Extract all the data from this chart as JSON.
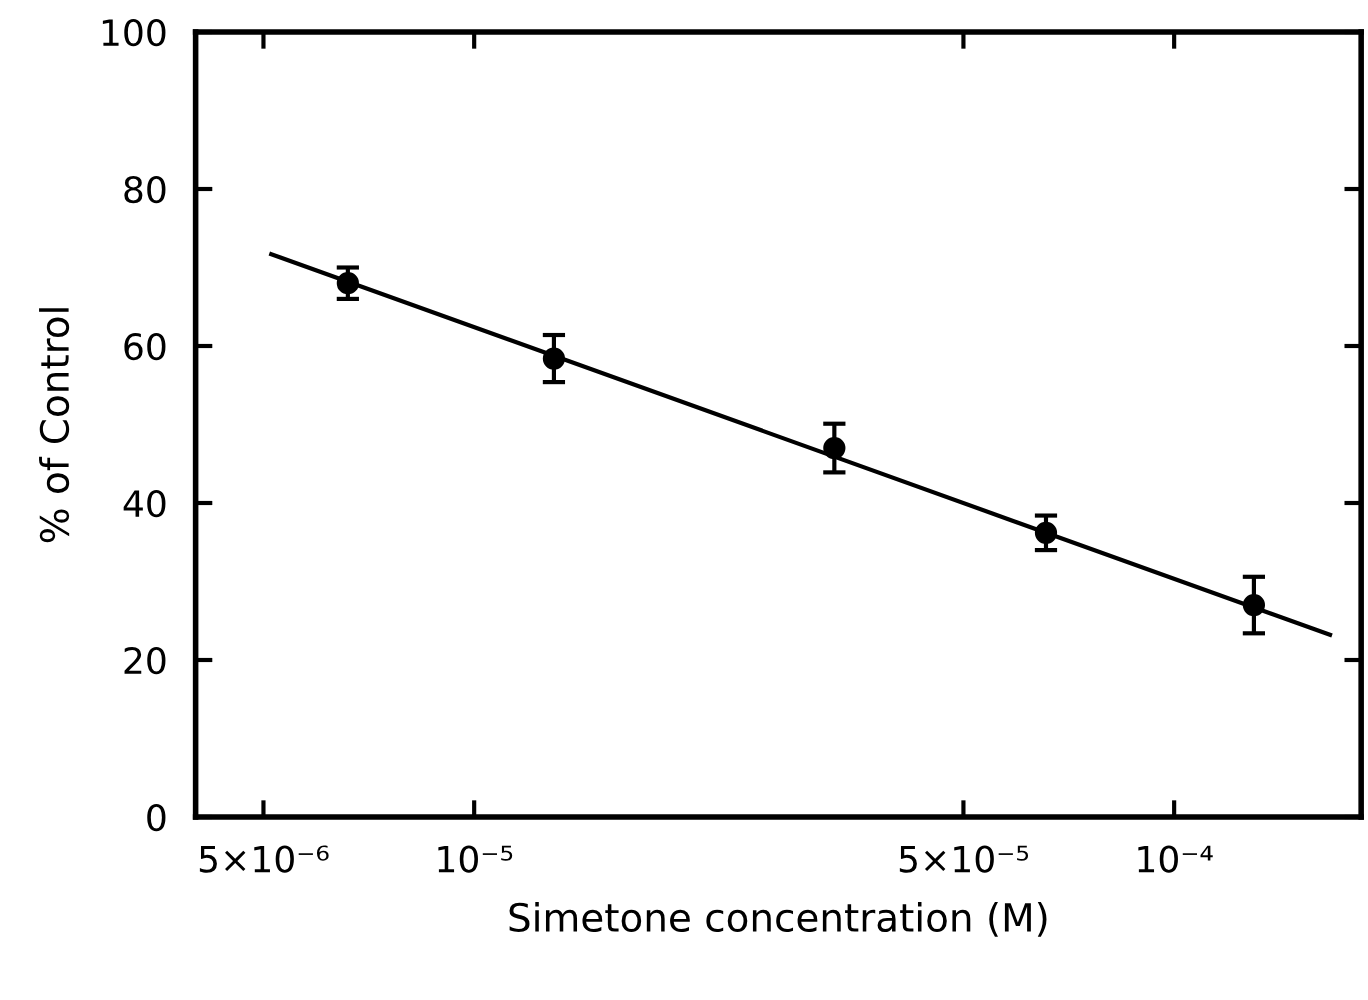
{
  "chart_data": {
    "type": "scatter",
    "xlabel": "Simetone concentration (M)",
    "ylabel": "% of Control",
    "log": "x",
    "xlim": [
      4e-06,
      0.000185
    ],
    "ylim": [
      0,
      100
    ],
    "xticks": [
      {
        "value": 5e-06,
        "label": "5×10⁻⁶"
      },
      {
        "value": 1e-05,
        "label": "10⁻⁵"
      },
      {
        "value": 5e-05,
        "label": "5×10⁻⁵"
      },
      {
        "value": 0.0001,
        "label": "10⁻⁴"
      }
    ],
    "yticks": [
      0,
      20,
      40,
      60,
      80,
      100
    ],
    "grid": false,
    "legend": false,
    "marker": "circle",
    "series": [
      {
        "color": "#000000",
        "x": [
          6.6e-06,
          1.3e-05,
          3.27e-05,
          6.56e-05,
          0.00013
        ],
        "values": [
          68.0,
          58.4,
          47.0,
          36.2,
          27.0
        ],
        "errors": [
          2.0,
          3.0,
          3.1,
          2.2,
          3.6
        ]
      },
      {
        "type": "line",
        "color": "#000000",
        "marker": "none",
        "line_style": "solid",
        "x": [
          5.13e-06,
          0.000167
        ],
        "values": [
          71.7,
          23.2
        ]
      }
    ]
  }
}
